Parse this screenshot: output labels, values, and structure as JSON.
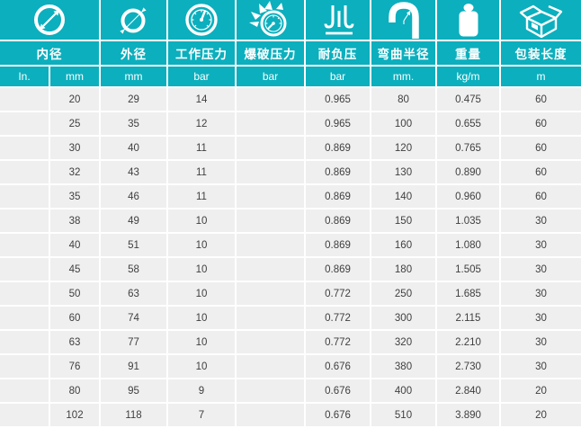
{
  "theme": {
    "accent_teal": "#0cafbd",
    "row_gray": "#efefef",
    "separator_white": "#ffffff",
    "data_text": "#3f3f3f"
  },
  "table": {
    "groups": [
      {
        "id": "inner-diameter",
        "label": "内径",
        "icon": "inner-diameter-icon",
        "span": 2
      },
      {
        "id": "outer-diameter",
        "label": "外径",
        "icon": "outer-diameter-icon",
        "span": 1
      },
      {
        "id": "working-pressure",
        "label": "工作压力",
        "icon": "pressure-gauge-icon",
        "span": 1
      },
      {
        "id": "burst-pressure",
        "label": "爆破压力",
        "icon": "burst-gauge-icon",
        "span": 1
      },
      {
        "id": "vacuum-resistance",
        "label": "耐负压",
        "icon": "vacuum-icon",
        "span": 1
      },
      {
        "id": "bend-radius",
        "label": "弯曲半径",
        "icon": "bend-radius-icon",
        "span": 1
      },
      {
        "id": "weight",
        "label": "重量",
        "icon": "weight-icon",
        "span": 1
      },
      {
        "id": "package-length",
        "label": "包装长度",
        "icon": "package-box-icon",
        "span": 1
      }
    ],
    "units": [
      "In.",
      "mm",
      "mm",
      "bar",
      "bar",
      "bar",
      "mm.",
      "kg/m",
      "m"
    ],
    "rows": [
      [
        "",
        "20",
        "29",
        "14",
        "",
        "0.965",
        "80",
        "0.475",
        "60"
      ],
      [
        "",
        "25",
        "35",
        "12",
        "",
        "0.965",
        "100",
        "0.655",
        "60"
      ],
      [
        "",
        "30",
        "40",
        "11",
        "",
        "0.869",
        "120",
        "0.765",
        "60"
      ],
      [
        "",
        "32",
        "43",
        "11",
        "",
        "0.869",
        "130",
        "0.890",
        "60"
      ],
      [
        "",
        "35",
        "46",
        "11",
        "",
        "0.869",
        "140",
        "0.960",
        "60"
      ],
      [
        "",
        "38",
        "49",
        "10",
        "",
        "0.869",
        "150",
        "1.035",
        "30"
      ],
      [
        "",
        "40",
        "51",
        "10",
        "",
        "0.869",
        "160",
        "1.080",
        "30"
      ],
      [
        "",
        "45",
        "58",
        "10",
        "",
        "0.869",
        "180",
        "1.505",
        "30"
      ],
      [
        "",
        "50",
        "63",
        "10",
        "",
        "0.772",
        "250",
        "1.685",
        "30"
      ],
      [
        "",
        "60",
        "74",
        "10",
        "",
        "0.772",
        "300",
        "2.115",
        "30"
      ],
      [
        "",
        "63",
        "77",
        "10",
        "",
        "0.772",
        "320",
        "2.210",
        "30"
      ],
      [
        "",
        "76",
        "91",
        "10",
        "",
        "0.676",
        "380",
        "2.730",
        "30"
      ],
      [
        "",
        "80",
        "95",
        "9",
        "",
        "0.676",
        "400",
        "2.840",
        "20"
      ],
      [
        "",
        "102",
        "118",
        "7",
        "",
        "0.676",
        "510",
        "3.890",
        "20"
      ]
    ]
  }
}
